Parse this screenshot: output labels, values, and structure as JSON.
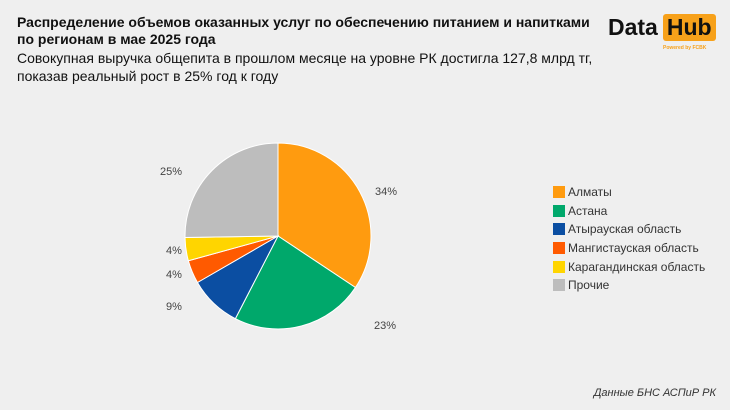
{
  "header": {
    "title": "Распределение объемов оказанных услуг по обеспечению питанием и напитками по регионам в мае 2025 года",
    "subtitle": "Совокупная выручка общепита в прошлом месяце на уровне РК достигла 127,8 млрд тг, показав реальный рост в 25% год к году"
  },
  "logo": {
    "part1": "Data",
    "part2": "Hub",
    "powered": "Powered by FCBK"
  },
  "chart_data": {
    "type": "pie",
    "categories": [
      "Алматы",
      "Астана",
      "Атырауская область",
      "Мангистауская область",
      "Карагандинская область",
      "Прочие"
    ],
    "values": [
      34,
      23,
      9,
      4,
      4,
      25
    ],
    "labels": [
      "34%",
      "23%",
      "9%",
      "4%",
      "4%",
      "25%"
    ],
    "colors": [
      "#ff9b0f",
      "#00a86b",
      "#0b4ea2",
      "#ff5a00",
      "#ffd500",
      "#bdbdbd"
    ],
    "legend_position": "right"
  },
  "source": "Данные БНС АСПиР РК"
}
